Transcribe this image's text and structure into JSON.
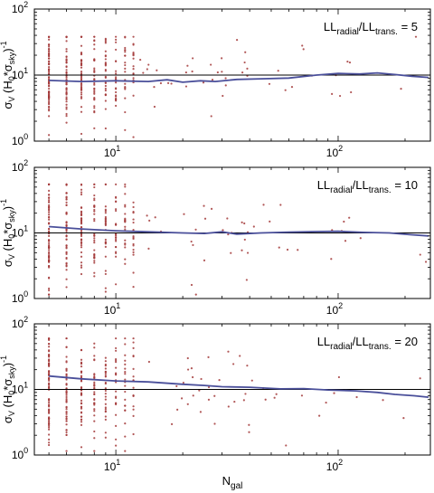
{
  "figure": {
    "xlabel_main": "N",
    "xlabel_sub": "gal"
  },
  "chart_data": [
    {
      "type": "scatter",
      "panel": 1,
      "annotation": {
        "a": "LL",
        "a_sub": "radial",
        "sep": "/LL",
        "b_sub": "trans.",
        "value": " = 5"
      },
      "ylabel": {
        "sigma": "σ",
        "v_sub": "V",
        "h0": " (H",
        "zero_sub": "0",
        "mult": "*σ",
        "sky_sub": "sky",
        "close": ")",
        "exp": "-1"
      },
      "x_scale": "log",
      "y_scale": "log",
      "xlim": [
        4.3,
        260
      ],
      "ylim": [
        1,
        100
      ],
      "x_ticks": [
        {
          "v": 10,
          "base": "10",
          "exp": "1"
        },
        {
          "v": 100,
          "base": "10",
          "exp": "2"
        }
      ],
      "y_ticks": [
        {
          "v": 1,
          "base": "10",
          "exp": "0"
        },
        {
          "v": 10,
          "base": "10",
          "exp": "1"
        },
        {
          "v": 100,
          "base": "10",
          "exp": "2"
        }
      ],
      "reference_line_y": 10,
      "scatter_seed": 11,
      "scatter_spread": 0.36,
      "scatter_max": 38,
      "running_median": [
        [
          5,
          8.3
        ],
        [
          7,
          8.0
        ],
        [
          10,
          8.2
        ],
        [
          14,
          8.0
        ],
        [
          17,
          8.5
        ],
        [
          20,
          7.8
        ],
        [
          24,
          8.2
        ],
        [
          28,
          8.0
        ],
        [
          35,
          8.6
        ],
        [
          45,
          8.8
        ],
        [
          60,
          9.0
        ],
        [
          80,
          10.0
        ],
        [
          100,
          10.6
        ],
        [
          125,
          10.4
        ],
        [
          150,
          10.8
        ],
        [
          180,
          10.2
        ],
        [
          215,
          9.6
        ],
        [
          255,
          9.2
        ]
      ],
      "colors": {
        "points": "#a33a3a",
        "median": "#4a4f9a",
        "reference": "#000000"
      }
    },
    {
      "type": "scatter",
      "panel": 2,
      "annotation": {
        "a": "LL",
        "a_sub": "radial",
        "sep": "/LL",
        "b_sub": "trans.",
        "value": " = 10"
      },
      "ylabel": {
        "sigma": "σ",
        "v_sub": "V",
        "h0": " (H",
        "zero_sub": "0",
        "mult": "*σ",
        "sky_sub": "sky",
        "close": ")",
        "exp": "-1"
      },
      "x_scale": "log",
      "y_scale": "log",
      "xlim": [
        4.3,
        260
      ],
      "ylim": [
        1,
        100
      ],
      "x_ticks": [
        {
          "v": 10,
          "base": "10",
          "exp": "1"
        },
        {
          "v": 100,
          "base": "10",
          "exp": "2"
        }
      ],
      "y_ticks": [
        {
          "v": 1,
          "base": "10",
          "exp": "0"
        },
        {
          "v": 10,
          "base": "10",
          "exp": "1"
        },
        {
          "v": 100,
          "base": "10",
          "exp": "2"
        }
      ],
      "reference_line_y": 10,
      "scatter_seed": 23,
      "scatter_spread": 0.4,
      "scatter_max": 55,
      "running_median": [
        [
          5,
          12.5
        ],
        [
          7,
          11.5
        ],
        [
          10,
          10.8
        ],
        [
          14,
          10.4
        ],
        [
          20,
          10.0
        ],
        [
          25,
          9.8
        ],
        [
          30,
          10.4
        ],
        [
          35,
          9.6
        ],
        [
          45,
          10.0
        ],
        [
          60,
          10.3
        ],
        [
          80,
          10.5
        ],
        [
          100,
          10.6
        ],
        [
          130,
          10.2
        ],
        [
          170,
          10.0
        ],
        [
          210,
          9.4
        ],
        [
          255,
          9.0
        ]
      ],
      "colors": {
        "points": "#a33a3a",
        "median": "#4a4f9a",
        "reference": "#000000"
      }
    },
    {
      "type": "scatter",
      "panel": 3,
      "annotation": {
        "a": "LL",
        "a_sub": "radial",
        "sep": "/LL",
        "b_sub": "trans.",
        "value": " = 20"
      },
      "ylabel": {
        "sigma": "σ",
        "v_sub": "V",
        "h0": " (H",
        "zero_sub": "0",
        "mult": "*σ",
        "sky_sub": "sky",
        "close": ")",
        "exp": "-1"
      },
      "x_scale": "log",
      "y_scale": "log",
      "xlim": [
        4.3,
        260
      ],
      "ylim": [
        1,
        100
      ],
      "x_ticks": [
        {
          "v": 10,
          "base": "10",
          "exp": "1"
        },
        {
          "v": 100,
          "base": "10",
          "exp": "2"
        }
      ],
      "y_ticks": [
        {
          "v": 1,
          "base": "10",
          "exp": "0"
        },
        {
          "v": 10,
          "base": "10",
          "exp": "1"
        },
        {
          "v": 100,
          "base": "10",
          "exp": "2"
        }
      ],
      "reference_line_y": 10,
      "scatter_seed": 37,
      "scatter_spread": 0.4,
      "scatter_max": 60,
      "running_median": [
        [
          5,
          16
        ],
        [
          7,
          14.5
        ],
        [
          10,
          13.5
        ],
        [
          14,
          13.0
        ],
        [
          20,
          12.0
        ],
        [
          25,
          11.5
        ],
        [
          30,
          11.0
        ],
        [
          40,
          10.8
        ],
        [
          55,
          10.2
        ],
        [
          70,
          10.3
        ],
        [
          90,
          9.8
        ],
        [
          120,
          9.5
        ],
        [
          150,
          9.0
        ],
        [
          180,
          8.4
        ],
        [
          220,
          8.0
        ],
        [
          255,
          7.6
        ]
      ],
      "colors": {
        "points": "#a33a3a",
        "median": "#4a4f9a",
        "reference": "#000000"
      }
    }
  ]
}
